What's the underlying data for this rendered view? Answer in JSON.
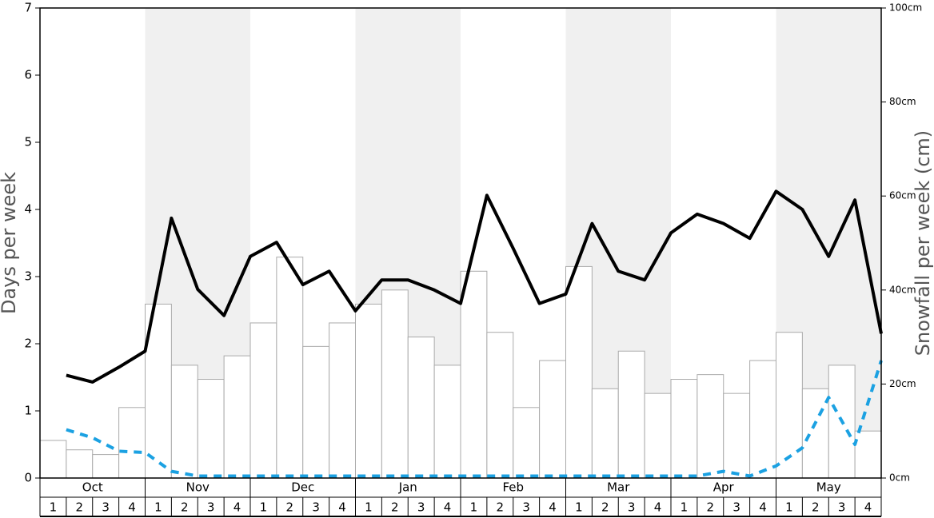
{
  "chart_data": {
    "type": "combo",
    "y_label": "Days per week",
    "y2_label": "Snowfall per week (cm)",
    "ylim": [
      0,
      7
    ],
    "yticks": [
      0,
      1,
      2,
      3,
      4,
      5,
      6,
      7
    ],
    "y2lim": [
      0,
      100
    ],
    "y2ticks": [
      {
        "value": 0,
        "label": "0cm"
      },
      {
        "value": 20,
        "label": "20cm"
      },
      {
        "value": 40,
        "label": "40cm"
      },
      {
        "value": 60,
        "label": "60cm"
      },
      {
        "value": 80,
        "label": "80cm"
      },
      {
        "value": 100,
        "label": "100cm"
      }
    ],
    "months": [
      "Oct",
      "Nov",
      "Dec",
      "Jan",
      "Feb",
      "Mar",
      "Apr",
      "May"
    ],
    "categories": [
      "1",
      "2",
      "3",
      "4",
      "1",
      "2",
      "3",
      "4",
      "1",
      "2",
      "3",
      "4",
      "1",
      "2",
      "3",
      "4",
      "1",
      "2",
      "3",
      "4",
      "1",
      "2",
      "3",
      "4",
      "1",
      "2",
      "3",
      "4",
      "1",
      "2",
      "3",
      "4"
    ],
    "series": [
      {
        "type": "bar",
        "axis": "y2",
        "color": "#ffffff",
        "values": [
          8,
          6,
          5,
          15,
          37,
          24,
          21,
          26,
          33,
          47,
          28,
          33,
          37,
          40,
          30,
          24,
          44,
          31,
          15,
          25,
          45,
          19,
          27,
          18,
          21,
          22,
          18,
          25,
          31,
          19,
          24,
          10
        ]
      },
      {
        "type": "line",
        "axis": "y",
        "color": "#000000",
        "values": [
          1.53,
          1.43,
          1.65,
          1.89,
          3.87,
          2.81,
          2.42,
          3.3,
          3.51,
          2.88,
          3.08,
          2.49,
          2.95,
          2.95,
          2.8,
          2.6,
          4.21,
          3.42,
          2.6,
          2.74,
          3.79,
          3.08,
          2.95,
          3.65,
          3.93,
          3.79,
          3.57,
          4.27,
          4.0,
          3.3,
          4.14,
          2.15
        ]
      },
      {
        "type": "dashed-line",
        "axis": "y",
        "color": "#1ba1e2",
        "values": [
          0.72,
          0.6,
          0.4,
          0.38,
          0.1,
          0.03,
          0.03,
          0.03,
          0.03,
          0.03,
          0.03,
          0.03,
          0.03,
          0.03,
          0.03,
          0.03,
          0.03,
          0.03,
          0.03,
          0.03,
          0.03,
          0.03,
          0.03,
          0.03,
          0.03,
          0.1,
          0.03,
          0.18,
          0.45,
          1.2,
          0.5,
          1.75
        ]
      }
    ]
  }
}
